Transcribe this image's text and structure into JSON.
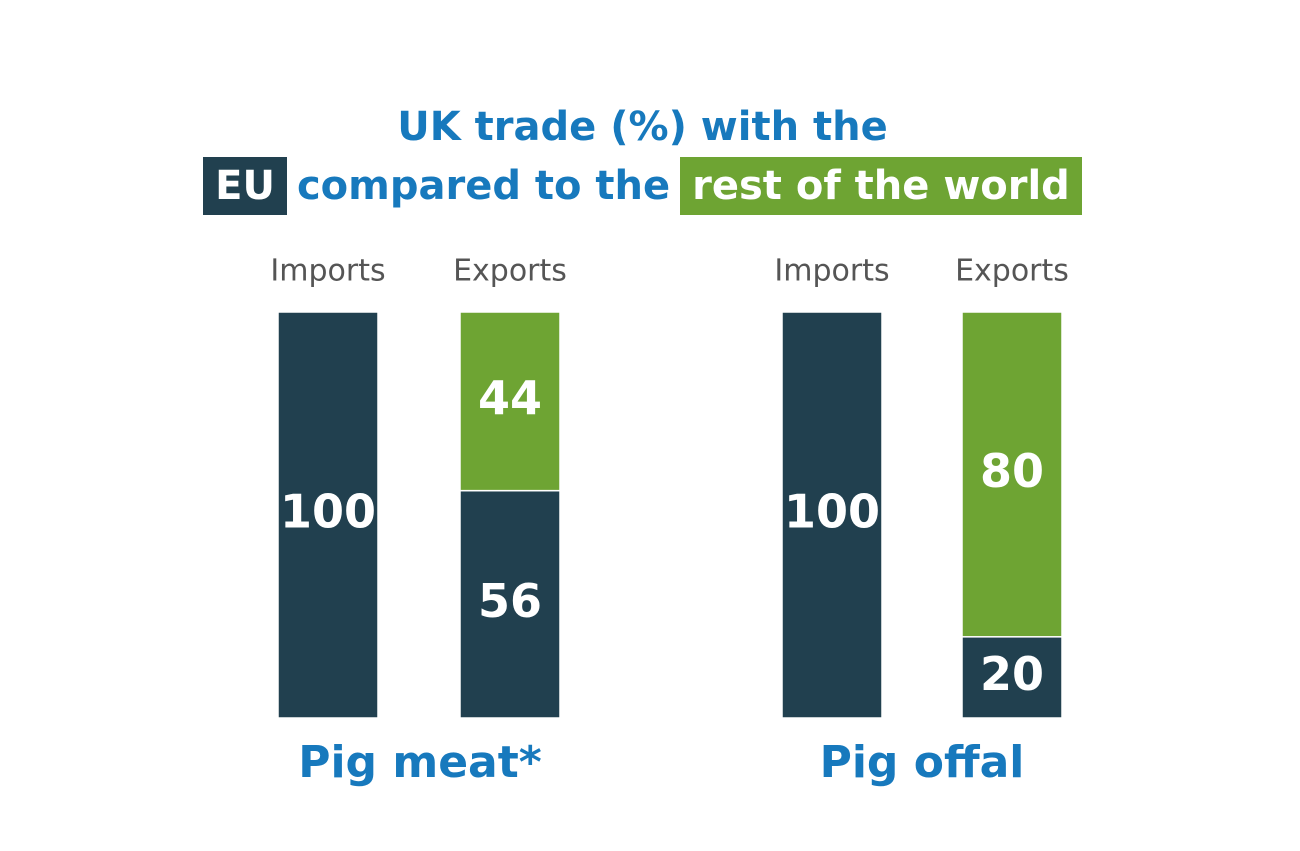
{
  "title": {
    "line1": "UK trade (%) with the",
    "connector": "compared to the"
  },
  "chart_data": [
    {
      "type": "bar",
      "stacked": true,
      "title": "Pig meat*",
      "categories": [
        "Imports",
        "Exports"
      ],
      "ylim": [
        0,
        100
      ],
      "series": [
        {
          "name": "EU",
          "color": "#21404f",
          "values": [
            100,
            56
          ]
        },
        {
          "name": "rest of the world",
          "color": "#6ea433",
          "values": [
            0,
            44
          ]
        }
      ]
    },
    {
      "type": "bar",
      "stacked": true,
      "title": "Pig offal",
      "categories": [
        "Imports",
        "Exports"
      ],
      "ylim": [
        0,
        100
      ],
      "series": [
        {
          "color": "#21404f",
          "values": [
            100,
            20
          ]
        },
        {
          "color": "#6ea433",
          "values": [
            0,
            80
          ]
        }
      ]
    }
  ]
}
